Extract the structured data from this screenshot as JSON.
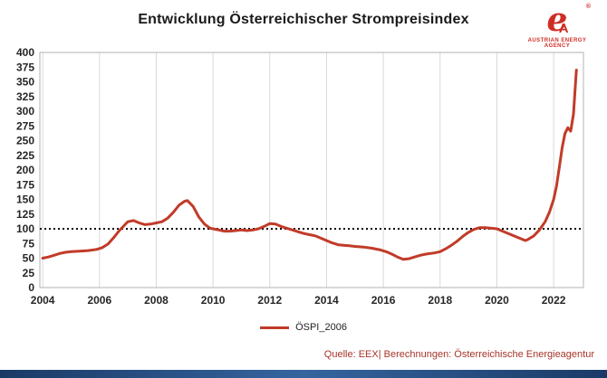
{
  "title": "Entwicklung Österreichischer Strompreisindex",
  "logo": {
    "letter_e": "e",
    "letter_a": "A",
    "registered": "®",
    "caption": "AUSTRIAN ENERGY AGENCY"
  },
  "legend": {
    "label": "ÖSPI_2006"
  },
  "source": "Quelle: EEX| Berechnungen: Österreichische Energieagentur",
  "colors": {
    "line": "#c13b29",
    "grid": "#d9d9d9",
    "border": "#b3b3b3",
    "reference": "#000000",
    "tick_text": "#262626",
    "accent_red": "#cf2e26",
    "bottom_bar_blue": "#1a3a66"
  },
  "chart_data": {
    "type": "line",
    "title": "Entwicklung Österreichischer Strompreisindex",
    "xlabel": "",
    "ylabel": "",
    "xlim": [
      2003.9,
      2023.05
    ],
    "ylim": [
      0,
      400
    ],
    "grid": "vertical",
    "legend_position": "bottom-center",
    "x_ticks": [
      2004,
      2006,
      2008,
      2010,
      2012,
      2014,
      2016,
      2018,
      2020,
      2022
    ],
    "y_ticks": [
      0,
      25,
      50,
      75,
      100,
      125,
      150,
      175,
      200,
      225,
      250,
      275,
      300,
      325,
      350,
      375,
      400
    ],
    "reference_line": {
      "y": 100,
      "style": "dotted",
      "color": "#000000"
    },
    "series": [
      {
        "name": "ÖSPI_2006",
        "color": "#c13b29",
        "points": [
          [
            2004.0,
            50
          ],
          [
            2004.2,
            52
          ],
          [
            2004.4,
            55
          ],
          [
            2004.6,
            58
          ],
          [
            2004.8,
            60
          ],
          [
            2005.0,
            61
          ],
          [
            2005.3,
            62
          ],
          [
            2005.6,
            63
          ],
          [
            2005.9,
            65
          ],
          [
            2006.1,
            68
          ],
          [
            2006.3,
            74
          ],
          [
            2006.5,
            85
          ],
          [
            2006.7,
            97
          ],
          [
            2006.9,
            107
          ],
          [
            2007.0,
            112
          ],
          [
            2007.2,
            114
          ],
          [
            2007.4,
            110
          ],
          [
            2007.6,
            107
          ],
          [
            2007.8,
            108
          ],
          [
            2008.0,
            110
          ],
          [
            2008.2,
            112
          ],
          [
            2008.4,
            118
          ],
          [
            2008.6,
            128
          ],
          [
            2008.8,
            140
          ],
          [
            2009.0,
            147
          ],
          [
            2009.1,
            148
          ],
          [
            2009.3,
            138
          ],
          [
            2009.5,
            120
          ],
          [
            2009.7,
            108
          ],
          [
            2009.9,
            101
          ],
          [
            2010.0,
            100
          ],
          [
            2010.2,
            98
          ],
          [
            2010.4,
            96
          ],
          [
            2010.6,
            96
          ],
          [
            2010.8,
            97
          ],
          [
            2011.0,
            98
          ],
          [
            2011.2,
            97
          ],
          [
            2011.4,
            98
          ],
          [
            2011.6,
            100
          ],
          [
            2011.8,
            104
          ],
          [
            2012.0,
            109
          ],
          [
            2012.2,
            108
          ],
          [
            2012.4,
            104
          ],
          [
            2012.6,
            101
          ],
          [
            2012.8,
            98
          ],
          [
            2013.0,
            95
          ],
          [
            2013.2,
            92
          ],
          [
            2013.4,
            90
          ],
          [
            2013.6,
            88
          ],
          [
            2013.8,
            84
          ],
          [
            2014.0,
            80
          ],
          [
            2014.2,
            76
          ],
          [
            2014.4,
            73
          ],
          [
            2014.6,
            72
          ],
          [
            2014.8,
            71
          ],
          [
            2015.0,
            70
          ],
          [
            2015.3,
            69
          ],
          [
            2015.6,
            67
          ],
          [
            2015.9,
            64
          ],
          [
            2016.1,
            61
          ],
          [
            2016.3,
            57
          ],
          [
            2016.5,
            52
          ],
          [
            2016.7,
            48
          ],
          [
            2016.9,
            49
          ],
          [
            2017.1,
            52
          ],
          [
            2017.3,
            55
          ],
          [
            2017.5,
            57
          ],
          [
            2017.8,
            59
          ],
          [
            2018.0,
            61
          ],
          [
            2018.2,
            66
          ],
          [
            2018.4,
            72
          ],
          [
            2018.6,
            79
          ],
          [
            2018.8,
            87
          ],
          [
            2019.0,
            94
          ],
          [
            2019.2,
            99
          ],
          [
            2019.4,
            102
          ],
          [
            2019.6,
            102
          ],
          [
            2019.8,
            101
          ],
          [
            2020.0,
            100
          ],
          [
            2020.2,
            96
          ],
          [
            2020.5,
            90
          ],
          [
            2020.8,
            84
          ],
          [
            2021.0,
            80
          ],
          [
            2021.1,
            82
          ],
          [
            2021.3,
            88
          ],
          [
            2021.5,
            98
          ],
          [
            2021.7,
            112
          ],
          [
            2021.85,
            128
          ],
          [
            2022.0,
            150
          ],
          [
            2022.1,
            172
          ],
          [
            2022.2,
            205
          ],
          [
            2022.3,
            238
          ],
          [
            2022.4,
            262
          ],
          [
            2022.5,
            272
          ],
          [
            2022.6,
            266
          ],
          [
            2022.7,
            295
          ],
          [
            2022.8,
            370
          ]
        ]
      }
    ]
  }
}
